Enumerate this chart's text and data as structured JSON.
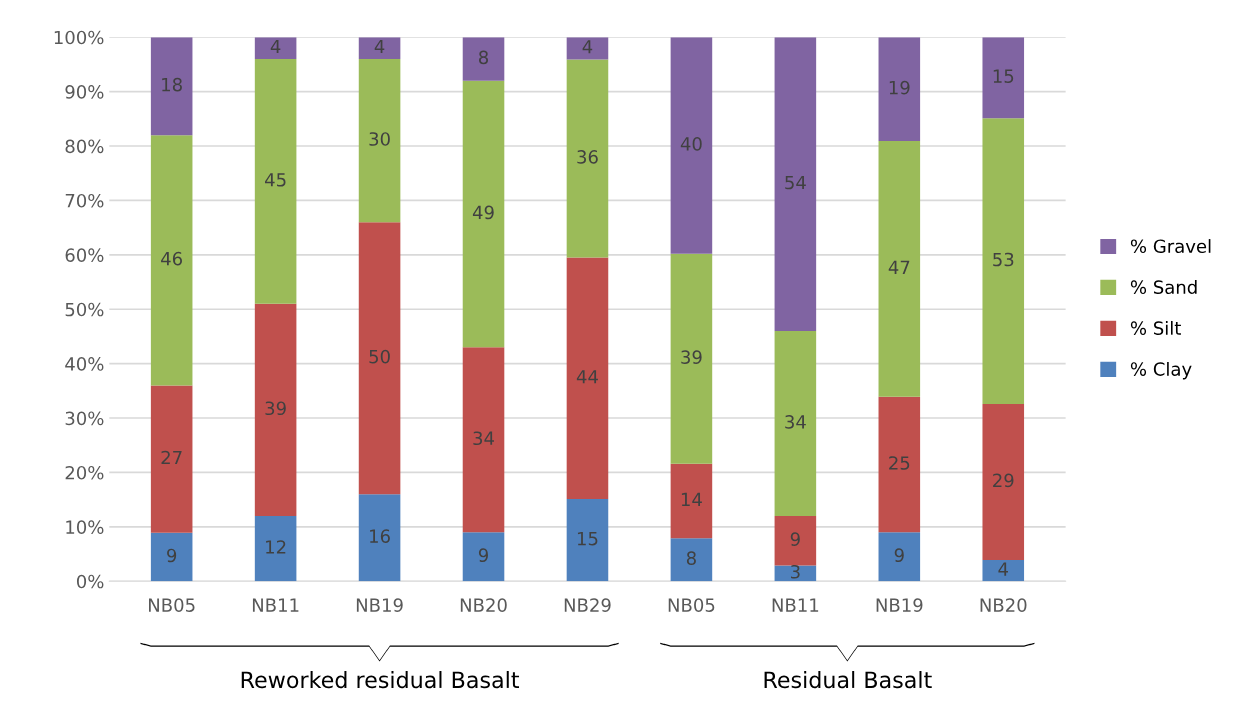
{
  "chart_data": {
    "type": "bar",
    "stacked": true,
    "categories": [
      "NB05",
      "NB11",
      "NB19",
      "NB20",
      "NB29",
      "NB05",
      "NB11",
      "NB19",
      "NB20"
    ],
    "series": [
      {
        "name": "% Clay",
        "color": "#4f81bd",
        "values": [
          8.9,
          12,
          16,
          9,
          15.1,
          7.9,
          2.9,
          9,
          3.9
        ],
        "value_labels": [
          "9",
          "12",
          "16",
          "9",
          "15",
          "8",
          "3",
          "9",
          "4"
        ]
      },
      {
        "name": "% Silt",
        "color": "#c0504d",
        "values": [
          27.1,
          39,
          50,
          34,
          44.4,
          13.7,
          9.1,
          24.9,
          28.7
        ],
        "value_labels": [
          "27",
          "39",
          "50",
          "34",
          "44",
          "14",
          "9",
          "25",
          "29"
        ]
      },
      {
        "name": "% Sand",
        "color": "#9bbb59",
        "values": [
          46,
          45,
          30,
          49,
          36.4,
          38.6,
          34,
          47,
          52.5
        ],
        "value_labels": [
          "46",
          "45",
          "30",
          "49",
          "36",
          "39",
          "34",
          "47",
          "53"
        ]
      },
      {
        "name": "% Gravel",
        "color": "#8064a2",
        "values": [
          18,
          4,
          4,
          8,
          4.1,
          39.8,
          54,
          19.1,
          14.9
        ],
        "value_labels": [
          "18",
          "4",
          "4",
          "8",
          "4",
          "40",
          "54",
          "19",
          "15"
        ]
      }
    ],
    "ylim": [
      0,
      100
    ],
    "yticks": [
      {
        "value": 0,
        "label": "0%"
      },
      {
        "value": 10,
        "label": "10%"
      },
      {
        "value": 20,
        "label": "20%"
      },
      {
        "value": 30,
        "label": "30%"
      },
      {
        "value": 40,
        "label": "40%"
      },
      {
        "value": 50,
        "label": "50%"
      },
      {
        "value": 60,
        "label": "60%"
      },
      {
        "value": 70,
        "label": "70%"
      },
      {
        "value": 80,
        "label": "80%"
      },
      {
        "value": 90,
        "label": "90%"
      },
      {
        "value": 100,
        "label": "100%"
      }
    ],
    "grid": "y",
    "legend": "right",
    "annotations": [
      "Reworked residual Basalt",
      "Residual Basalt"
    ]
  }
}
